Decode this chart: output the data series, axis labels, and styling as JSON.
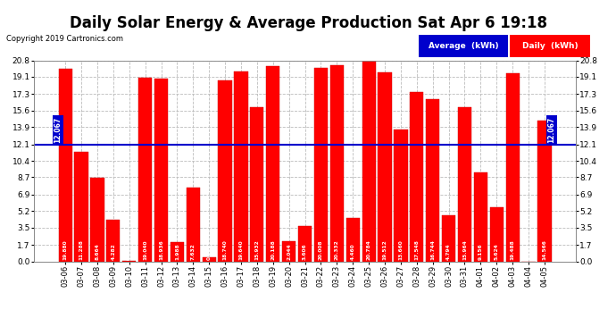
{
  "title": "Daily Solar Energy & Average Production Sat Apr 6 19:18",
  "copyright": "Copyright 2019 Cartronics.com",
  "average_value": 12.067,
  "categories": [
    "03-06",
    "03-07",
    "03-08",
    "03-09",
    "03-10",
    "03-11",
    "03-12",
    "03-13",
    "03-14",
    "03-15",
    "03-16",
    "03-17",
    "03-18",
    "03-19",
    "03-20",
    "03-21",
    "03-22",
    "03-23",
    "03-24",
    "03-25",
    "03-26",
    "03-27",
    "03-28",
    "03-29",
    "03-30",
    "03-31",
    "04-01",
    "04-02",
    "04-03",
    "04-04",
    "04-05"
  ],
  "values": [
    19.88,
    11.288,
    8.664,
    4.282,
    0.02,
    19.04,
    18.936,
    1.988,
    7.632,
    0.452,
    18.74,
    19.64,
    15.932,
    20.188,
    2.044,
    3.606,
    20.008,
    20.332,
    4.46,
    20.784,
    19.512,
    13.66,
    17.548,
    16.744,
    4.794,
    15.964,
    9.156,
    5.624,
    19.488,
    0.0,
    14.566
  ],
  "bar_color": "#ff0000",
  "bar_edge_color": "#cc0000",
  "average_line_color": "#0000cc",
  "average_text_color": "white",
  "average_bg_color": "#0000cc",
  "background_color": "#ffffff",
  "grid_color": "#bbbbbb",
  "yticks": [
    0.0,
    1.7,
    3.5,
    5.2,
    6.9,
    8.7,
    10.4,
    12.1,
    13.9,
    15.6,
    17.3,
    19.1,
    20.8
  ],
  "ylim": [
    0,
    20.8
  ],
  "title_fontsize": 12,
  "legend_avg_color": "#0000cc",
  "legend_daily_color": "#ff0000"
}
